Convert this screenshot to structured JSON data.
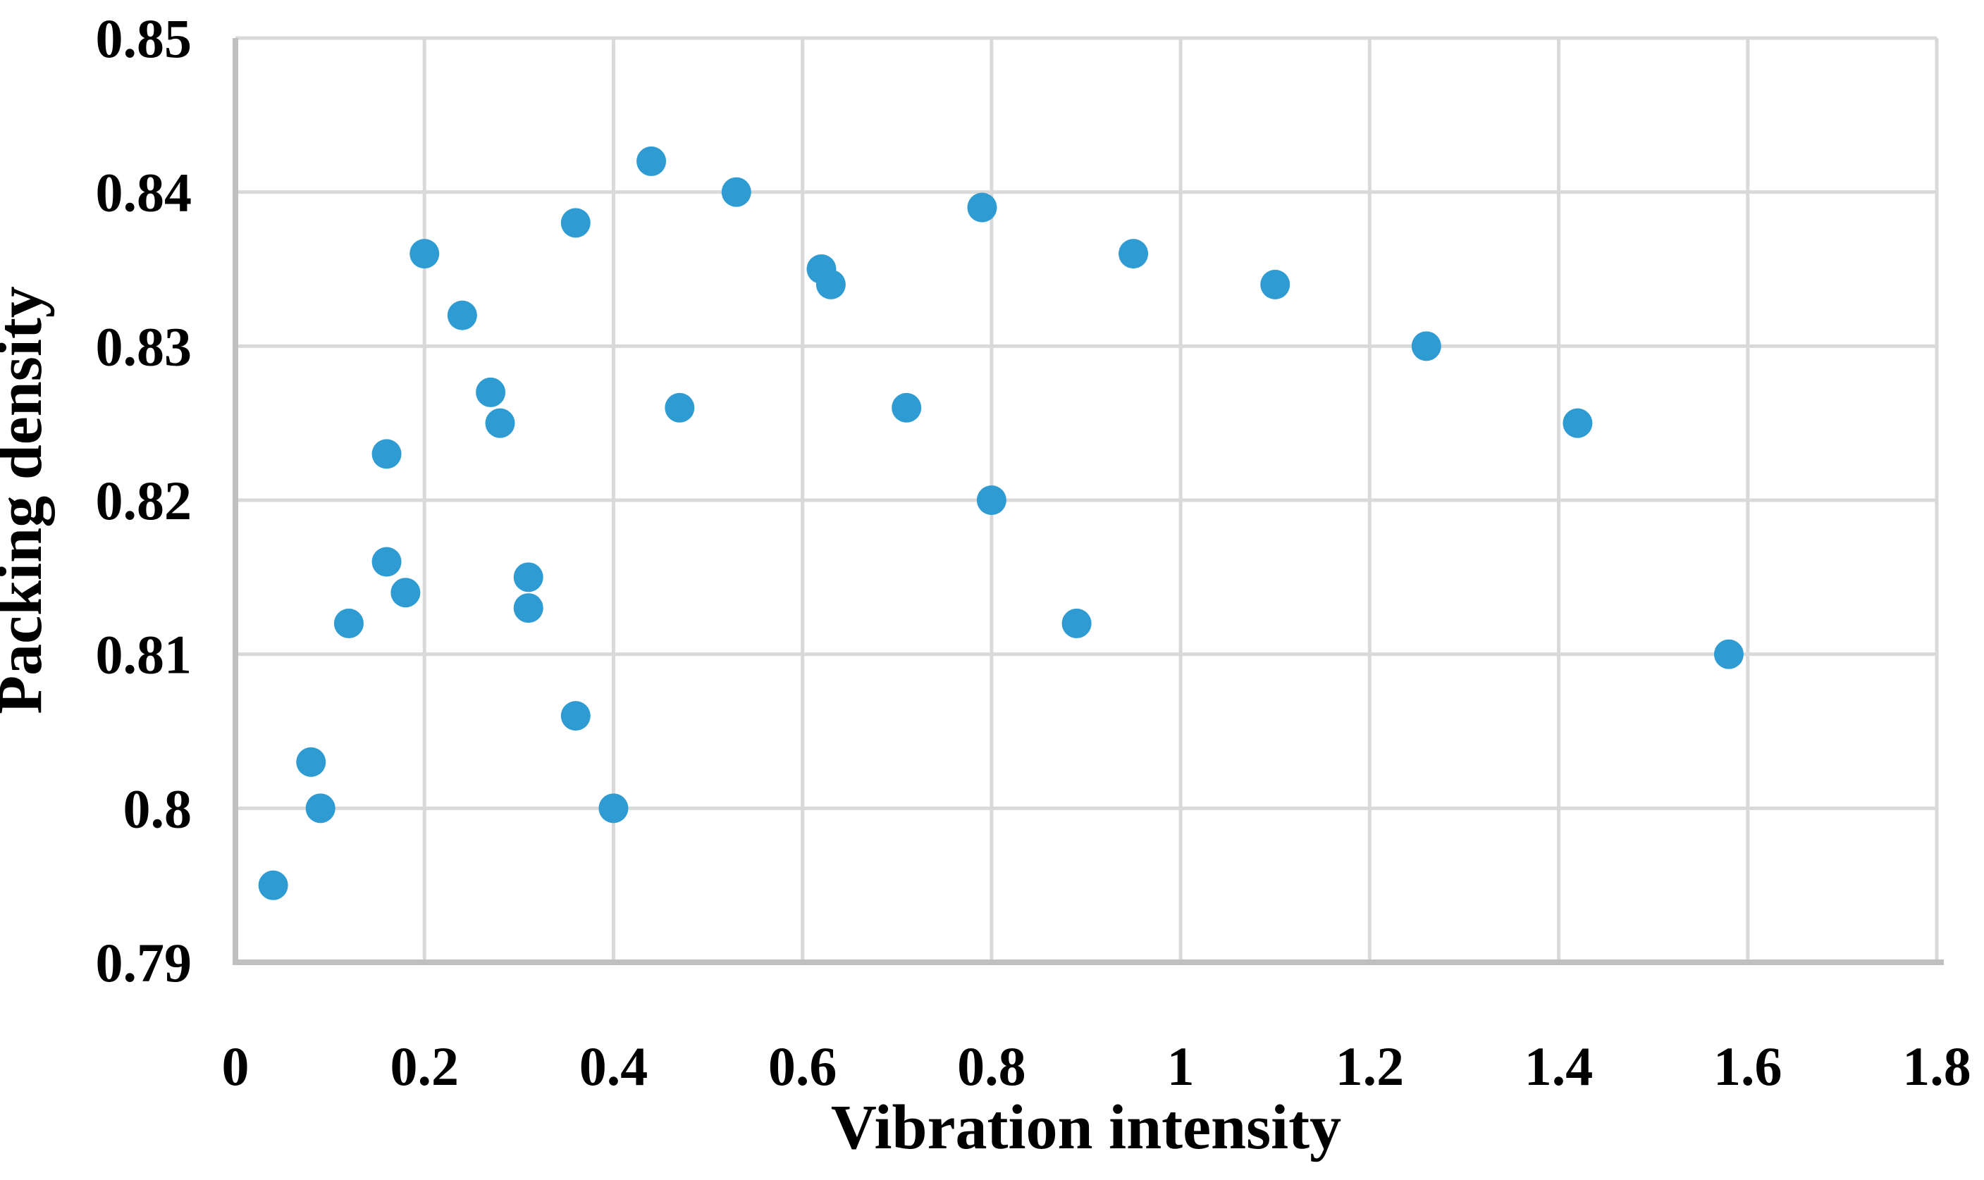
{
  "chart_data": {
    "type": "scatter",
    "title": "",
    "xlabel": "Vibration intensity",
    "ylabel": "Packing density",
    "xlim": [
      0,
      1.8
    ],
    "ylim": [
      0.79,
      0.85
    ],
    "x_ticks": [
      0,
      0.2,
      0.4,
      0.6,
      0.8,
      1,
      1.2,
      1.4,
      1.6,
      1.8
    ],
    "x_tick_labels": [
      "0",
      "0.2",
      "0.4",
      "0.6",
      "0.8",
      "1",
      "1.2",
      "1.4",
      "1.6",
      "1.8"
    ],
    "y_ticks": [
      0.85,
      0.84,
      0.83,
      0.82,
      0.81,
      0.8,
      0.79
    ],
    "y_tick_labels": [
      "0.85",
      "0.84",
      "0.83",
      "0.82",
      "0.81",
      "0.8",
      "0.79"
    ],
    "grid": true,
    "legend_position": "none",
    "series": [
      {
        "name": "Packing density",
        "points": [
          [
            0.04,
            0.795
          ],
          [
            0.08,
            0.803
          ],
          [
            0.09,
            0.8
          ],
          [
            0.12,
            0.812
          ],
          [
            0.16,
            0.816
          ],
          [
            0.16,
            0.823
          ],
          [
            0.18,
            0.814
          ],
          [
            0.2,
            0.836
          ],
          [
            0.24,
            0.832
          ],
          [
            0.27,
            0.827
          ],
          [
            0.28,
            0.825
          ],
          [
            0.31,
            0.813
          ],
          [
            0.31,
            0.815
          ],
          [
            0.36,
            0.806
          ],
          [
            0.36,
            0.838
          ],
          [
            0.4,
            0.8
          ],
          [
            0.44,
            0.842
          ],
          [
            0.47,
            0.826
          ],
          [
            0.53,
            0.84
          ],
          [
            0.62,
            0.835
          ],
          [
            0.63,
            0.834
          ],
          [
            0.71,
            0.826
          ],
          [
            0.79,
            0.839
          ],
          [
            0.8,
            0.82
          ],
          [
            0.89,
            0.812
          ],
          [
            0.95,
            0.836
          ],
          [
            1.1,
            0.834
          ],
          [
            1.26,
            0.83
          ],
          [
            1.42,
            0.825
          ],
          [
            1.58,
            0.81
          ]
        ]
      }
    ],
    "marker_color": "#2E9BD3",
    "gridline_color": "#D9D9D9",
    "axis_line_color": "#BFBFBF",
    "text_color": "#000000",
    "background_color": "#FFFFFF"
  }
}
